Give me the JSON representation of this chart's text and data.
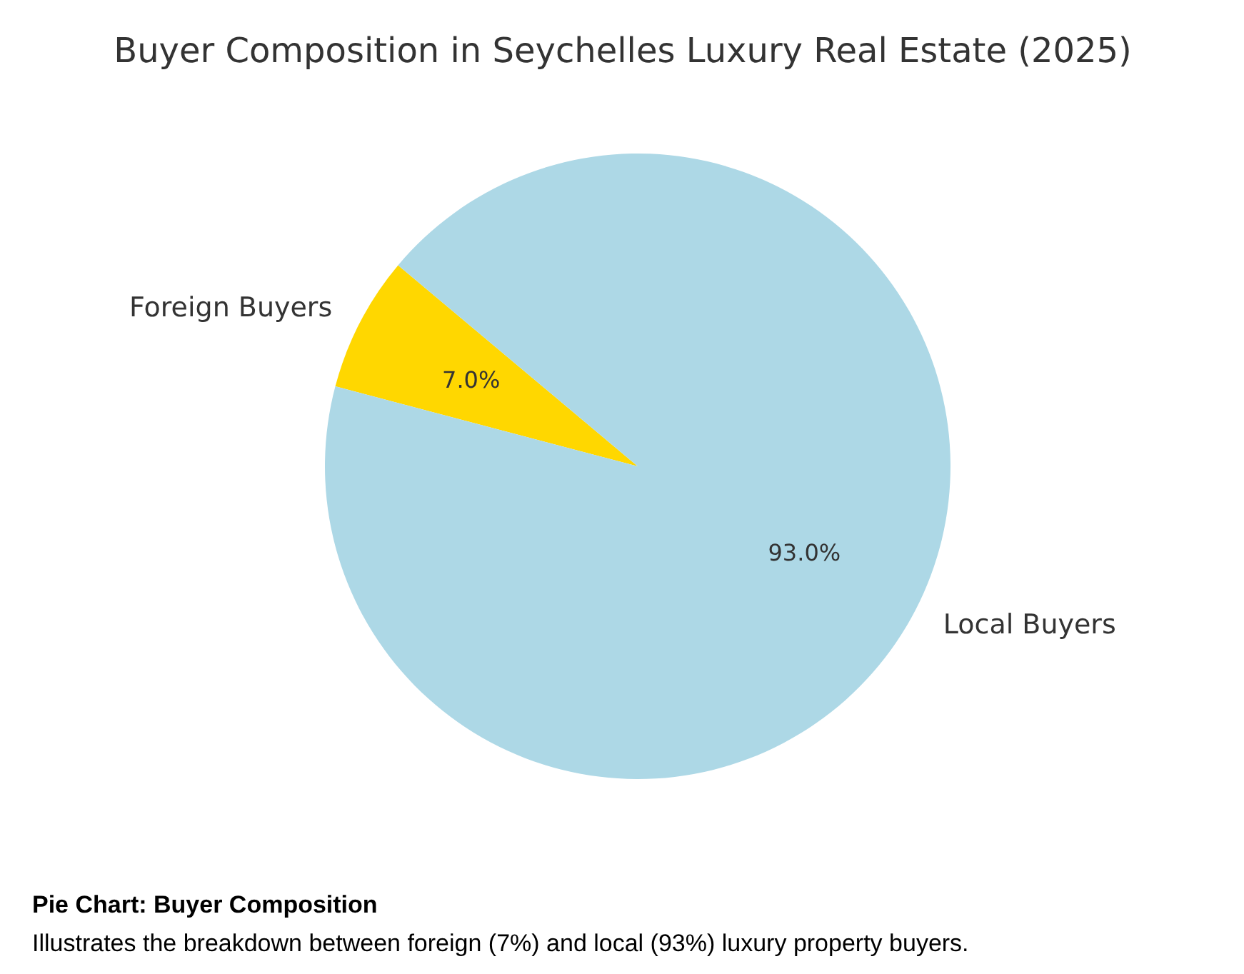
{
  "chart_data": {
    "type": "pie",
    "title": "Buyer Composition in Seychelles Luxury Real Estate (2025)",
    "categories": [
      "Foreign Buyers",
      "Local Buyers"
    ],
    "values": [
      7.0,
      93.0
    ],
    "colors": [
      "#ffd700",
      "#add8e6"
    ],
    "value_labels": [
      "7.0%",
      "93.0%"
    ],
    "annotations": [
      "Pie Chart: Buyer Composition",
      "Illustrates the breakdown between foreign (7%) and local (93%) luxury property buyers."
    ]
  }
}
